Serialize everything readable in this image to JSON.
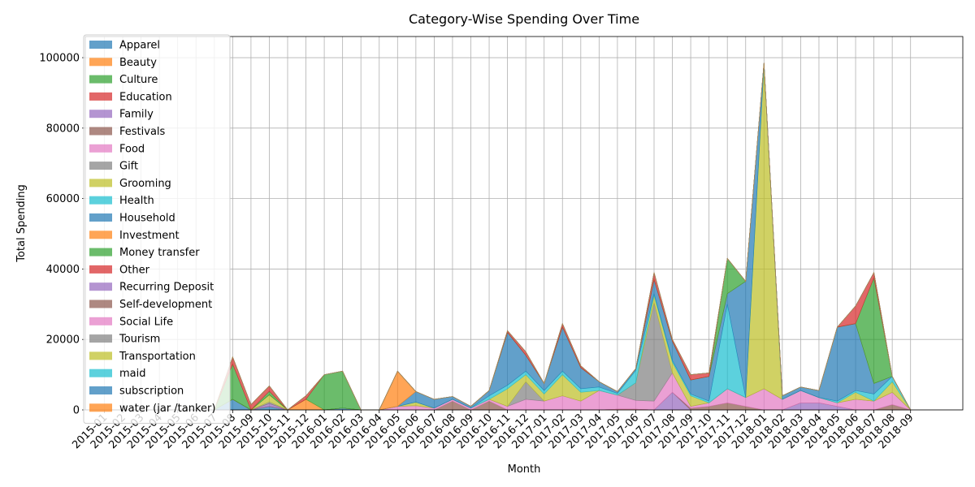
{
  "chart_data": {
    "type": "area",
    "title": "Category-Wise Spending Over Time",
    "xlabel": "Month",
    "ylabel": "Total Spending",
    "ylim": [
      0,
      106000
    ],
    "yticks": [
      0,
      20000,
      40000,
      60000,
      80000,
      100000
    ],
    "grid": true,
    "legend_position": "upper-left",
    "categories": [
      "2015-01",
      "2015-02",
      "2015-03",
      "2015-04",
      "2015-05",
      "2015-06",
      "2015-07",
      "2015-08",
      "2015-09",
      "2015-10",
      "2015-11",
      "2015-12",
      "2016-01",
      "2016-02",
      "2016-03",
      "2016-04",
      "2016-05",
      "2016-06",
      "2016-07",
      "2016-08",
      "2016-09",
      "2016-10",
      "2016-11",
      "2016-12",
      "2017-01",
      "2017-02",
      "2017-03",
      "2017-04",
      "2017-05",
      "2017-06",
      "2017-07",
      "2017-08",
      "2017-09",
      "2017-10",
      "2017-11",
      "2017-12",
      "2018-01",
      "2018-02",
      "2018-03",
      "2018-04",
      "2018-05",
      "2018-06",
      "2018-07",
      "2018-08",
      "2018-09"
    ],
    "series": [
      {
        "name": "Apparel",
        "color": "#1f77b4",
        "values": [
          0,
          0,
          0,
          0,
          0,
          0,
          0,
          3000,
          0,
          1000,
          0,
          0,
          0,
          500,
          0,
          0,
          0,
          0,
          0,
          0,
          0,
          0,
          0,
          0,
          0,
          0,
          0,
          0,
          0,
          0,
          0,
          0,
          0,
          0,
          0,
          0,
          0,
          0,
          0,
          0,
          0,
          0,
          0,
          0,
          0
        ]
      },
      {
        "name": "Beauty",
        "color": "#ff7f0e",
        "values": [
          0,
          0,
          0,
          0,
          0,
          0,
          0,
          0,
          0,
          0,
          0,
          0,
          0,
          0,
          0,
          0,
          0,
          0,
          0,
          0,
          0,
          0,
          0,
          0,
          0,
          0,
          0,
          0,
          200,
          200,
          0,
          0,
          0,
          0,
          0,
          0,
          0,
          0,
          0,
          0,
          0,
          0,
          0,
          0,
          0
        ]
      },
      {
        "name": "Culture",
        "color": "#2ca02c",
        "values": [
          0,
          0,
          0,
          0,
          0,
          0,
          0,
          0,
          0,
          0,
          0,
          0,
          0,
          0,
          0,
          0,
          0,
          0,
          0,
          0,
          0,
          0,
          0,
          0,
          0,
          0,
          0,
          0,
          0,
          0,
          0,
          0,
          0,
          0,
          0,
          0,
          0,
          0,
          0,
          0,
          0,
          0,
          0,
          0,
          0
        ]
      },
      {
        "name": "Education",
        "color": "#d62728",
        "values": [
          0,
          0,
          0,
          0,
          0,
          0,
          0,
          0,
          0,
          0,
          0,
          0,
          0,
          0,
          0,
          0,
          0,
          0,
          0,
          0,
          0,
          0,
          0,
          0,
          0,
          0,
          0,
          0,
          0,
          0,
          0,
          0,
          0,
          0,
          0,
          0,
          0,
          0,
          0,
          0,
          0,
          0,
          0,
          0,
          0
        ]
      },
      {
        "name": "Family",
        "color": "#9467bd",
        "values": [
          0,
          0,
          0,
          0,
          0,
          0,
          0,
          0,
          0,
          800,
          0,
          0,
          0,
          0,
          0,
          0,
          0,
          0,
          0,
          0,
          0,
          0,
          0,
          0,
          0,
          0,
          0,
          0,
          0,
          0,
          0,
          5000,
          0,
          0,
          0,
          0,
          0,
          0,
          2000,
          2000,
          1000,
          0,
          0,
          0,
          0
        ]
      },
      {
        "name": "Festivals",
        "color": "#8c564b",
        "values": [
          0,
          0,
          0,
          0,
          0,
          0,
          0,
          0,
          0,
          0,
          0,
          0,
          0,
          0,
          0,
          0,
          0,
          0,
          0,
          2500,
          0,
          2500,
          0,
          0,
          0,
          0,
          0,
          0,
          0,
          0,
          0,
          0,
          500,
          1000,
          2000,
          1000,
          0,
          0,
          0,
          0,
          0,
          0,
          0,
          1500,
          0
        ]
      },
      {
        "name": "Food",
        "color": "#e377c2",
        "values": [
          0,
          0,
          0,
          0,
          0,
          0,
          0,
          0,
          0,
          0,
          0,
          0,
          0,
          0,
          0,
          0,
          1000,
          1200,
          500,
          500,
          500,
          500,
          1000,
          3000,
          2500,
          4000,
          2500,
          5500,
          4000,
          2500,
          2500,
          5500,
          500,
          1000,
          4000,
          2500,
          6000,
          3000,
          3500,
          1500,
          1000,
          3000,
          2500,
          3500,
          0
        ]
      },
      {
        "name": "Gift",
        "color": "#7f7f7f",
        "values": [
          0,
          0,
          0,
          0,
          0,
          0,
          0,
          0,
          0,
          500,
          0,
          0,
          0,
          0,
          0,
          0,
          0,
          0,
          0,
          0,
          0,
          0,
          0,
          5000,
          0,
          0,
          0,
          0,
          0,
          5000,
          28000,
          0,
          0,
          0,
          0,
          0,
          0,
          0,
          0,
          0,
          0,
          0,
          0,
          0,
          0
        ]
      },
      {
        "name": "Grooming",
        "color": "#bcbd22",
        "values": [
          0,
          0,
          0,
          0,
          0,
          0,
          0,
          0,
          0,
          2000,
          0,
          0,
          0,
          0,
          0,
          0,
          0,
          1000,
          0,
          0,
          0,
          0,
          5000,
          2000,
          2000,
          6000,
          2500,
          0,
          0,
          0,
          2000,
          3000,
          3000,
          0,
          0,
          0,
          92000,
          0,
          0,
          0,
          0,
          2000,
          0,
          3000,
          0
        ]
      },
      {
        "name": "Health",
        "color": "#17becf",
        "values": [
          0,
          0,
          0,
          0,
          0,
          0,
          0,
          0,
          0,
          0,
          0,
          0,
          0,
          0,
          0,
          0,
          0,
          0,
          0,
          0,
          0,
          1000,
          1000,
          1000,
          1000,
          1000,
          1000,
          1000,
          500,
          3500,
          500,
          500,
          500,
          500,
          24000,
          0,
          0,
          0,
          0,
          0,
          500,
          500,
          2000,
          1500,
          0
        ]
      },
      {
        "name": "Household",
        "color": "#1f77b4",
        "values": [
          0,
          0,
          0,
          0,
          0,
          0,
          0,
          0,
          0,
          0,
          0,
          0,
          0,
          0,
          0,
          0,
          0,
          3000,
          2500,
          800,
          500,
          1500,
          15000,
          4500,
          2000,
          12500,
          6000,
          1500,
          500,
          500,
          4000,
          5500,
          4000,
          7000,
          3000,
          33000,
          500,
          1000,
          1000,
          2000,
          21000,
          19000,
          3000,
          0,
          0
        ]
      },
      {
        "name": "Investment",
        "color": "#ff7f0e",
        "values": [
          0,
          0,
          0,
          0,
          0,
          0,
          0,
          0,
          0,
          0,
          0,
          3000,
          0,
          0,
          0,
          0,
          10000,
          0,
          0,
          0,
          0,
          0,
          0,
          0,
          0,
          0,
          0,
          0,
          0,
          0,
          0,
          0,
          0,
          0,
          0,
          0,
          0,
          0,
          0,
          0,
          0,
          0,
          0,
          0,
          0
        ]
      },
      {
        "name": "Money transfer",
        "color": "#2ca02c",
        "values": [
          0,
          0,
          0,
          0,
          0,
          0,
          0,
          10000,
          0,
          1000,
          0,
          0,
          10000,
          10500,
          0,
          0,
          0,
          0,
          0,
          0,
          0,
          0,
          0,
          0,
          0,
          0,
          0,
          0,
          0,
          0,
          0,
          0,
          0,
          0,
          10000,
          0,
          0,
          0,
          0,
          0,
          0,
          0,
          30000,
          0,
          0
        ]
      },
      {
        "name": "Other",
        "color": "#d62728",
        "values": [
          0,
          0,
          0,
          0,
          0,
          0,
          0,
          2000,
          1500,
          1500,
          0,
          1000,
          0,
          0,
          0,
          0,
          0,
          0,
          0,
          0,
          0,
          0,
          500,
          1000,
          0,
          1000,
          500,
          0,
          0,
          0,
          2000,
          500,
          1500,
          1000,
          0,
          0,
          0,
          0,
          0,
          0,
          0,
          5000,
          1500,
          0,
          0
        ]
      },
      {
        "name": "Recurring Deposit",
        "color": "#9467bd",
        "values": [
          0,
          0,
          0,
          0,
          0,
          0,
          0,
          0,
          0,
          0,
          0,
          0,
          0,
          0,
          0,
          0,
          0,
          0,
          0,
          0,
          0,
          0,
          0,
          0,
          0,
          0,
          0,
          0,
          0,
          0,
          0,
          0,
          0,
          0,
          0,
          0,
          0,
          0,
          0,
          0,
          0,
          0,
          0,
          0,
          0
        ]
      },
      {
        "name": "Self-development",
        "color": "#8c564b",
        "values": [
          0,
          0,
          0,
          0,
          0,
          0,
          0,
          0,
          0,
          0,
          0,
          0,
          0,
          0,
          0,
          0,
          0,
          0,
          0,
          0,
          0,
          0,
          0,
          0,
          0,
          0,
          0,
          0,
          0,
          0,
          0,
          0,
          0,
          0,
          0,
          0,
          0,
          0,
          0,
          0,
          0,
          0,
          0,
          0,
          0
        ]
      },
      {
        "name": "Social Life",
        "color": "#e377c2",
        "values": [
          0,
          0,
          0,
          0,
          0,
          0,
          0,
          0,
          0,
          0,
          0,
          0,
          0,
          0,
          0,
          0,
          0,
          0,
          0,
          0,
          0,
          0,
          0,
          0,
          0,
          0,
          0,
          0,
          0,
          0,
          0,
          0,
          0,
          0,
          0,
          0,
          0,
          0,
          0,
          0,
          0,
          0,
          0,
          0,
          0
        ]
      },
      {
        "name": "Tourism",
        "color": "#7f7f7f",
        "values": [
          0,
          0,
          0,
          0,
          0,
          0,
          0,
          0,
          0,
          0,
          0,
          0,
          0,
          0,
          0,
          0,
          0,
          0,
          0,
          0,
          0,
          0,
          0,
          0,
          0,
          0,
          0,
          0,
          0,
          0,
          0,
          0,
          0,
          0,
          0,
          0,
          0,
          0,
          0,
          0,
          0,
          0,
          0,
          0,
          0
        ]
      },
      {
        "name": "Transportation",
        "color": "#bcbd22",
        "values": [
          0,
          0,
          0,
          0,
          0,
          0,
          0,
          0,
          0,
          0,
          0,
          0,
          0,
          0,
          0,
          0,
          0,
          0,
          0,
          0,
          0,
          0,
          0,
          0,
          0,
          0,
          0,
          0,
          0,
          0,
          0,
          0,
          0,
          0,
          0,
          0,
          0,
          0,
          0,
          0,
          0,
          0,
          0,
          0,
          0
        ]
      },
      {
        "name": "maid",
        "color": "#17becf",
        "values": [
          0,
          0,
          0,
          0,
          0,
          0,
          0,
          0,
          0,
          0,
          0,
          0,
          0,
          0,
          0,
          0,
          0,
          0,
          0,
          0,
          0,
          0,
          0,
          0,
          0,
          0,
          0,
          0,
          0,
          0,
          0,
          0,
          0,
          0,
          0,
          0,
          0,
          0,
          0,
          0,
          0,
          0,
          0,
          0,
          0
        ]
      },
      {
        "name": "subscription",
        "color": "#1f77b4",
        "values": [
          0,
          0,
          0,
          0,
          0,
          0,
          0,
          0,
          0,
          0,
          0,
          0,
          0,
          0,
          0,
          0,
          0,
          0,
          0,
          0,
          0,
          0,
          0,
          0,
          0,
          0,
          0,
          0,
          0,
          0,
          0,
          0,
          0,
          0,
          0,
          0,
          0,
          0,
          0,
          0,
          0,
          0,
          0,
          0,
          0
        ]
      },
      {
        "name": "water (jar /tanker)",
        "color": "#ff7f0e",
        "values": [
          0,
          0,
          0,
          0,
          0,
          0,
          0,
          0,
          0,
          0,
          0,
          0,
          0,
          0,
          0,
          0,
          0,
          0,
          0,
          0,
          0,
          0,
          0,
          0,
          0,
          0,
          0,
          0,
          0,
          0,
          0,
          0,
          0,
          0,
          0,
          0,
          0,
          0,
          0,
          0,
          0,
          0,
          0,
          0,
          0
        ]
      }
    ]
  }
}
